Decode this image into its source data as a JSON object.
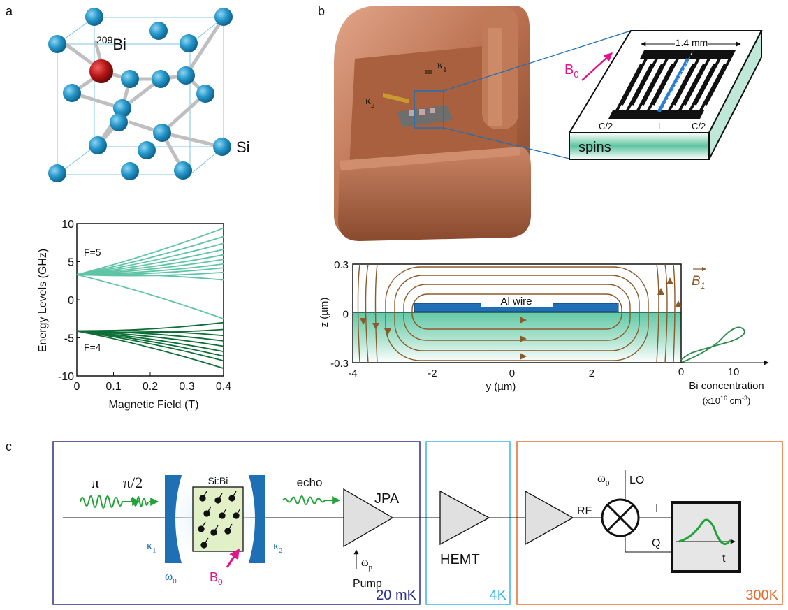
{
  "panel_labels": {
    "a": "a",
    "b": "b",
    "c": "c"
  },
  "panel_a": {
    "atom_bi_mass": "209",
    "atom_bi": "Bi",
    "atom_si": "Si"
  },
  "chart_data": [
    {
      "type": "line",
      "xlabel": "Magnetic Field (T)",
      "ylabel": "Energy Levels (GHz)",
      "xlim": [
        0,
        0.4
      ],
      "ylim": [
        -10,
        10
      ],
      "xticks": [
        "0",
        "0.1",
        "0.2",
        "0.3",
        "0.4"
      ],
      "yticks": [
        "10",
        "5",
        "0",
        "-5",
        "-10"
      ],
      "annotations": [
        "F=5",
        "F=4"
      ],
      "series": [
        {
          "group": "F=5",
          "color": "#5fc4a6",
          "x": [
            0,
            0.4
          ],
          "y_start": 3.3,
          "y_end_values": [
            9.4,
            8.3,
            7.4,
            6.6,
            5.9,
            5.3,
            4.7,
            4.2,
            3.6,
            2.6,
            -2.5
          ]
        },
        {
          "group": "F=4",
          "color": "#0d6e37",
          "x": [
            0,
            0.4
          ],
          "y_start": -4.1,
          "y_end_values": [
            -3.0,
            -3.9,
            -4.7,
            -5.4,
            -6.1,
            -6.8,
            -7.4,
            -8.0,
            -9.0
          ]
        }
      ]
    },
    {
      "type": "line",
      "xlabel": "y (µm)",
      "ylabel": "z (µm)",
      "xlim": [
        -4,
        4
      ],
      "ylim": [
        -0.3,
        0.3
      ],
      "xticks": [
        "-4",
        "-2",
        "0",
        "2"
      ],
      "yticks": [
        "0.3",
        "0",
        "-0.3"
      ],
      "annotations": [
        "Al wire"
      ],
      "field_label": "B",
      "field_subscript": "1",
      "profile": {
        "xlabel": "Bi concentration",
        "xunit": "(x10",
        "xunit_exp": "16",
        "xunit_rest": " cm",
        "xunit_exp2": "-3",
        "xunit_close": ")",
        "xticks": [
          "0",
          "10"
        ]
      }
    }
  ],
  "panel_b": {
    "kappa1": "κ",
    "kappa1_sub": "1",
    "kappa2": "κ",
    "kappa2_sub": "2",
    "b0": "B",
    "b0_sub": "0",
    "dimension": "1.4 mm",
    "left_cap": "C/2",
    "right_cap": "C/2",
    "inductor": "L",
    "spins": "spins"
  },
  "panel_c": {
    "pi": "π",
    "pi2": "π/2",
    "sample": "Si:Bi",
    "echo": "echo",
    "jpa": "JPA",
    "kappa1": "κ",
    "kappa1_sub": "1",
    "kappa2": "κ",
    "kappa2_sub": "2",
    "omega0": "ω",
    "omega0_sub": "0",
    "b0": "B",
    "b0_sub": "0",
    "omega_p": "ω",
    "omega_p_sub": "p",
    "pump": "Pump",
    "hemt": "HEMT",
    "rf": "RF",
    "lo": "LO",
    "lo_omega": "ω",
    "lo_omega_sub": "0",
    "i_port": "I",
    "q_port": "Q",
    "t_axis": "t",
    "stage_20mk": "20 mK",
    "stage_4k": "4K",
    "stage_300k": "300K",
    "colors": {
      "stage_20mk": "#2b2e8c",
      "stage_4k": "#37b7e6",
      "stage_300k": "#ea6a2a",
      "green": "#21a337",
      "blue": "#1f6fb5",
      "magenta": "#e0148c"
    }
  }
}
